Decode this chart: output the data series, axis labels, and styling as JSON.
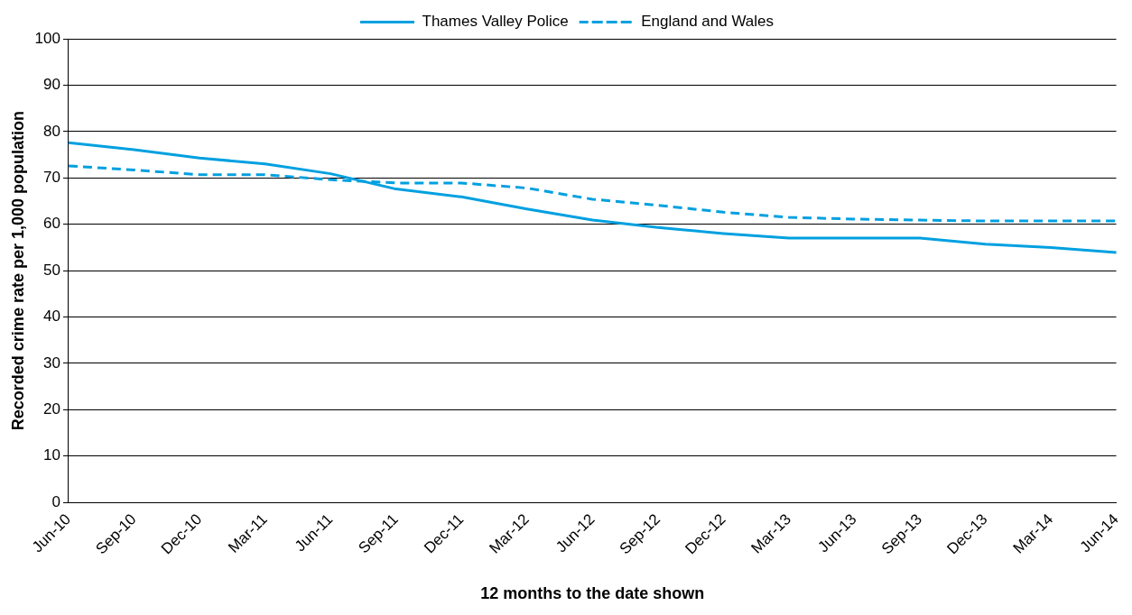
{
  "chart_data": {
    "type": "line",
    "xlabel": "12 months to the date shown",
    "ylabel": "Recorded crime rate per 1,000 population",
    "categories": [
      "Jun-10",
      "Sep-10",
      "Dec-10",
      "Mar-11",
      "Jun-11",
      "Sep-11",
      "Dec-11",
      "Mar-12",
      "Jun-12",
      "Sep-12",
      "Dec-12",
      "Mar-13",
      "Jun-13",
      "Sep-13",
      "Dec-13",
      "Mar-14",
      "Jun-14"
    ],
    "series": [
      {
        "name": "Thames Valley Police",
        "color": "#00a0e0",
        "line_style": "solid",
        "values": [
          77.6,
          76.1,
          74.3,
          73.0,
          70.9,
          67.6,
          65.9,
          63.3,
          60.9,
          59.3,
          58.0,
          57.0,
          57.0,
          57.0,
          55.7,
          55.0,
          53.9
        ]
      },
      {
        "name": "England and Wales",
        "color": "#00a0e0",
        "line_style": "dashed",
        "values": [
          72.6,
          71.7,
          70.7,
          70.7,
          69.6,
          68.9,
          68.9,
          67.8,
          65.4,
          64.1,
          62.6,
          61.5,
          61.1,
          60.9,
          60.7,
          60.7,
          60.7
        ]
      }
    ],
    "ylim": [
      0,
      100
    ],
    "yticks": [
      0,
      10,
      20,
      30,
      40,
      50,
      60,
      70,
      80,
      90,
      100
    ],
    "grid": "y",
    "legend": "top",
    "marker": "none"
  }
}
